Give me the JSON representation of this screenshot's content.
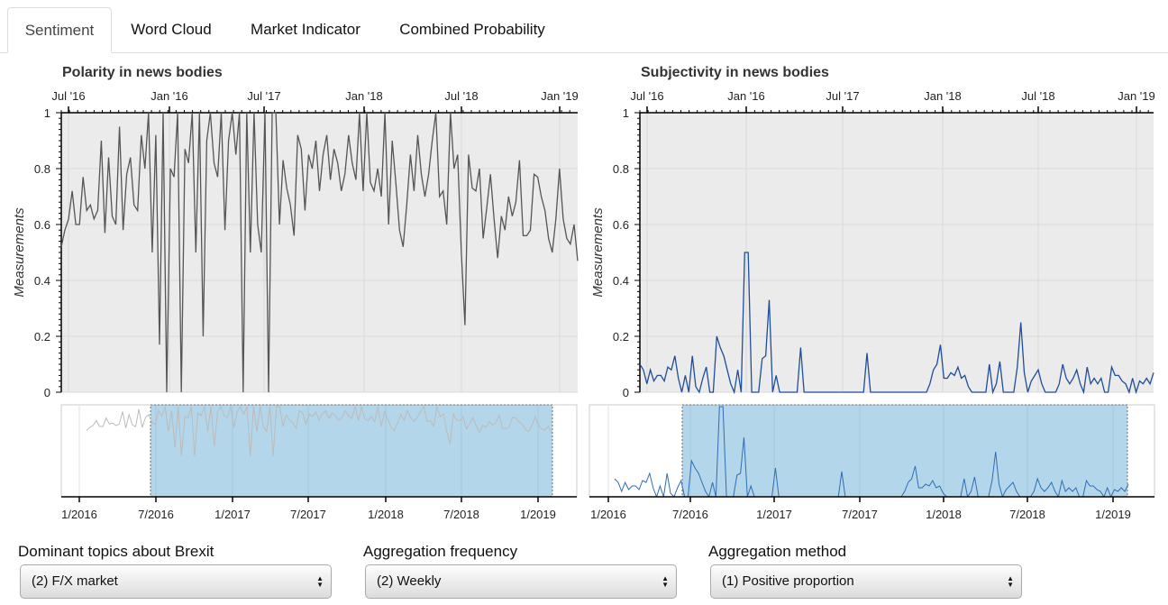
{
  "tabs": [
    {
      "label": "Sentiment",
      "active": true
    },
    {
      "label": "Word Cloud",
      "active": false
    },
    {
      "label": "Market Indicator",
      "active": false
    },
    {
      "label": "Combined Probability",
      "active": false
    }
  ],
  "colors": {
    "polarity_line": "#555555",
    "subjectivity_line": "#1f4e99",
    "plot_background": "#ebebeb",
    "brush_fill": "#6aaed6",
    "context_gray": "#bbbbbb",
    "context_blue": "#2f6db5"
  },
  "controls": [
    {
      "label": "Dominant topics about Brexit",
      "value": "(2) F/X market"
    },
    {
      "label": "Aggregation frequency",
      "value": "(2) Weekly"
    },
    {
      "label": "Aggregation method",
      "value": "(1) Positive proportion"
    }
  ],
  "chart_data": [
    {
      "type": "line",
      "title": "Polarity in news bodies",
      "ylabel": "Measurements",
      "ylim": [
        0,
        1
      ],
      "yticks": [
        "0",
        "0.2",
        "0.4",
        "0.6",
        "0.8",
        "1"
      ],
      "top_axis_labels": [
        "Jul '16",
        "Jan '16",
        "Jul '17",
        "Jan '18",
        "Jul '18",
        "Jan '19"
      ],
      "context_axis_labels": [
        "1/2016",
        "7/2016",
        "1/2017",
        "7/2017",
        "1/2018",
        "7/2018",
        "1/2019"
      ],
      "grid": true,
      "series": [
        {
          "values": [
            0.52,
            0.58,
            0.62,
            0.72,
            0.6,
            0.6,
            0.77,
            0.65,
            0.67,
            0.62,
            0.65,
            0.9,
            0.57,
            0.84,
            0.63,
            0.6,
            0.95,
            0.58,
            0.78,
            0.84,
            0.67,
            0.65,
            0.92,
            0.8,
            1,
            0.5,
            0.92,
            0.17,
            1,
            0,
            0.8,
            0.77,
            1,
            0,
            0.87,
            0.82,
            1,
            0.5,
            1,
            0.2,
            0.9,
            1,
            0.82,
            0.77,
            1,
            0.58,
            0.9,
            1,
            0.85,
            1,
            0,
            1,
            0.5,
            1,
            0.6,
            0.5,
            1,
            0,
            1,
            1,
            0.6,
            0.83,
            0.73,
            0.67,
            0.56,
            0.92,
            0.87,
            0.65,
            0.85,
            0.8,
            0.9,
            0.72,
            0.85,
            0.92,
            0.76,
            0.87,
            0.82,
            0.72,
            0.78,
            0.92,
            0.82,
            0.76,
            1,
            0.72,
            1,
            0.75,
            0.72,
            0.8,
            0.7,
            1,
            0.6,
            0.9,
            0.75,
            0.58,
            0.52,
            0.67,
            0.85,
            0.72,
            0.92,
            0.78,
            0.7,
            0.78,
            0.9,
            1,
            0.7,
            0.72,
            0.6,
            1,
            0.8,
            0.85,
            0.5,
            0.24,
            0.85,
            0.73,
            0.72,
            0.8,
            0.55,
            0.66,
            0.78,
            0.62,
            0.48,
            0.63,
            0.58,
            0.7,
            0.63,
            0.68,
            0.83,
            0.56,
            0.56,
            0.58,
            0.78,
            0.77,
            0.7,
            0.65,
            0.55,
            0.5,
            0.62,
            0.8,
            0.62,
            0.55,
            0.53,
            0.6,
            0.47
          ]
        }
      ]
    },
    {
      "type": "line",
      "title": "Subjectivity in news bodies",
      "ylabel": "Measurements",
      "ylim": [
        0,
        1
      ],
      "yticks": [
        "0",
        "0.2",
        "0.4",
        "0.6",
        "0.8",
        "1"
      ],
      "top_axis_labels": [
        "Jul '16",
        "Jan '16",
        "Jul '17",
        "Jan '18",
        "Jul '18",
        "Jan '19"
      ],
      "context_axis_labels": [
        "1/2016",
        "7/2016",
        "1/2017",
        "7/2017",
        "1/2018",
        "7/2018",
        "1/2019"
      ],
      "grid": true,
      "series": [
        {
          "values": [
            0.1,
            0.08,
            0.03,
            0.08,
            0.04,
            0.06,
            0.06,
            0.04,
            0.09,
            0.08,
            0.13,
            0.05,
            0,
            0.06,
            0,
            0.13,
            0.02,
            0,
            0.05,
            0.09,
            0,
            0,
            0.2,
            0.16,
            0.13,
            0.08,
            0.03,
            0,
            0.08,
            0,
            0.5,
            0.5,
            0,
            0,
            0,
            0.12,
            0.13,
            0.33,
            0,
            0.06,
            0,
            0,
            0,
            0,
            0,
            0,
            0.16,
            0,
            0,
            0,
            0,
            0,
            0,
            0,
            0,
            0,
            0,
            0,
            0,
            0,
            0,
            0,
            0,
            0,
            0,
            0.14,
            0,
            0,
            0,
            0,
            0,
            0,
            0,
            0,
            0,
            0,
            0,
            0,
            0,
            0,
            0,
            0,
            0,
            0.03,
            0.08,
            0.1,
            0.17,
            0.05,
            0.05,
            0.07,
            0.06,
            0.09,
            0.05,
            0.06,
            0.02,
            0,
            0,
            0,
            0,
            0,
            0.1,
            0,
            0.03,
            0.11,
            0,
            0,
            0,
            0,
            0.09,
            0.25,
            0.07,
            0,
            0.04,
            0.06,
            0.08,
            0.03,
            0,
            0,
            0,
            0,
            0.03,
            0.1,
            0.05,
            0.03,
            0.05,
            0.08,
            0.03,
            0,
            0.09,
            0.03,
            0.05,
            0.03,
            0.05,
            0,
            0,
            0.09,
            0.06,
            0.06,
            0.04,
            0.03,
            0,
            0.05,
            0,
            0.04,
            0.03,
            0.05,
            0.03,
            0.07
          ]
        }
      ]
    }
  ]
}
